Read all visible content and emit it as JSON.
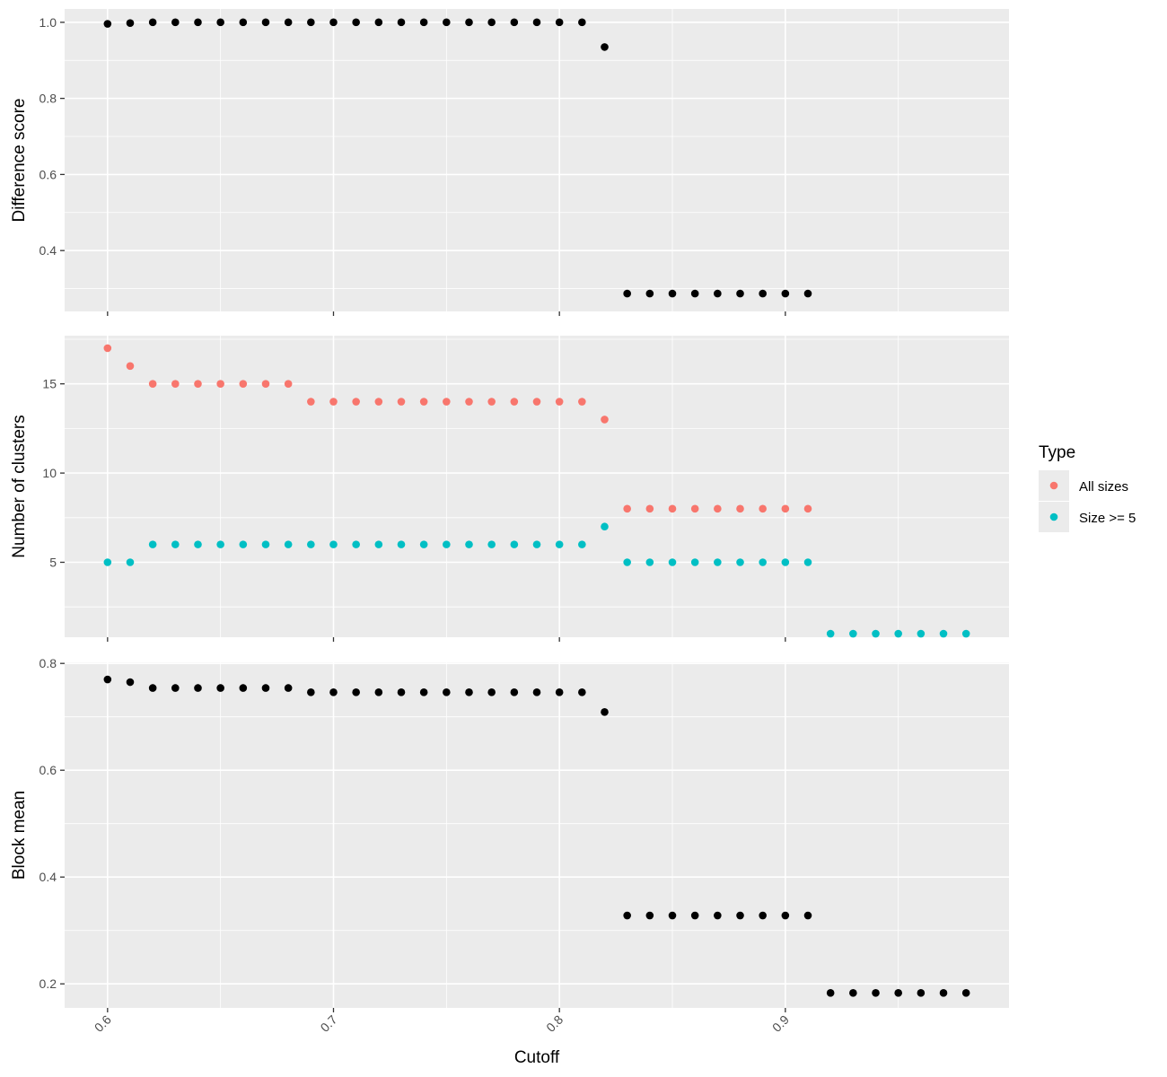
{
  "chart_data": {
    "type": "scatter",
    "xlabel": "Cutoff",
    "x_ticks": [
      0.6,
      0.7,
      0.8,
      0.9
    ],
    "xlim": [
      0.581,
      0.999
    ],
    "legend": {
      "title": "Type",
      "position": "right",
      "entries": [
        {
          "label": "All sizes",
          "color": "#F8766D"
        },
        {
          "label": "Size >= 5",
          "color": "#00BFC4"
        }
      ]
    },
    "grid": true,
    "panels": [
      {
        "ylabel": "Difference score",
        "ylim": [
          0.24,
          1.035
        ],
        "y_ticks": [
          0.4,
          0.6,
          0.8,
          1.0
        ],
        "y_tick_labels": [
          "0.4",
          "0.6",
          "0.8",
          "1.0"
        ],
        "series": [
          {
            "color": "#000000",
            "x": [
              0.6,
              0.61,
              0.62,
              0.63,
              0.64,
              0.65,
              0.66,
              0.67,
              0.68,
              0.69,
              0.7,
              0.71,
              0.72,
              0.73,
              0.74,
              0.75,
              0.76,
              0.77,
              0.78,
              0.79,
              0.8,
              0.81,
              0.82,
              0.83,
              0.84,
              0.85,
              0.86,
              0.87,
              0.88,
              0.89,
              0.9,
              0.91
            ],
            "y": [
              0.996,
              0.998,
              1.0,
              1.0,
              1.0,
              1.0,
              1.0,
              1.0,
              1.0,
              1.0,
              1.0,
              1.0,
              1.0,
              1.0,
              1.0,
              1.0,
              1.0,
              1.0,
              1.0,
              1.0,
              1.0,
              1.0,
              0.935,
              0.287,
              0.287,
              0.287,
              0.287,
              0.287,
              0.287,
              0.287,
              0.287,
              0.287
            ]
          }
        ]
      },
      {
        "ylabel": "Number of clusters",
        "ylim": [
          0.8,
          17.7
        ],
        "y_ticks": [
          5,
          10,
          15
        ],
        "y_tick_labels": [
          "5",
          "10",
          "15"
        ],
        "series": [
          {
            "name": "All sizes",
            "color": "#F8766D",
            "x": [
              0.6,
              0.61,
              0.62,
              0.63,
              0.64,
              0.65,
              0.66,
              0.67,
              0.68,
              0.69,
              0.7,
              0.71,
              0.72,
              0.73,
              0.74,
              0.75,
              0.76,
              0.77,
              0.78,
              0.79,
              0.8,
              0.81,
              0.82,
              0.83,
              0.84,
              0.85,
              0.86,
              0.87,
              0.88,
              0.89,
              0.9,
              0.91
            ],
            "y": [
              17,
              16,
              15,
              15,
              15,
              15,
              15,
              15,
              15,
              14,
              14,
              14,
              14,
              14,
              14,
              14,
              14,
              14,
              14,
              14,
              14,
              14,
              13,
              8,
              8,
              8,
              8,
              8,
              8,
              8,
              8,
              8
            ]
          },
          {
            "name": "Size >= 5",
            "color": "#00BFC4",
            "x": [
              0.6,
              0.61,
              0.62,
              0.63,
              0.64,
              0.65,
              0.66,
              0.67,
              0.68,
              0.69,
              0.7,
              0.71,
              0.72,
              0.73,
              0.74,
              0.75,
              0.76,
              0.77,
              0.78,
              0.79,
              0.8,
              0.81,
              0.82,
              0.83,
              0.84,
              0.85,
              0.86,
              0.87,
              0.88,
              0.89,
              0.9,
              0.91,
              0.92,
              0.93,
              0.94,
              0.95,
              0.96,
              0.97,
              0.98
            ],
            "y": [
              5,
              5,
              6,
              6,
              6,
              6,
              6,
              6,
              6,
              6,
              6,
              6,
              6,
              6,
              6,
              6,
              6,
              6,
              6,
              6,
              6,
              6,
              7,
              5,
              5,
              5,
              5,
              5,
              5,
              5,
              5,
              5,
              1,
              1,
              1,
              1,
              1,
              1,
              1
            ]
          }
        ]
      },
      {
        "ylabel": "Block mean",
        "ylim": [
          0.155,
          0.802
        ],
        "y_ticks": [
          0.2,
          0.4,
          0.6,
          0.8
        ],
        "y_tick_labels": [
          "0.2",
          "0.4",
          "0.6",
          "0.8"
        ],
        "series": [
          {
            "color": "#000000",
            "x": [
              0.6,
              0.61,
              0.62,
              0.63,
              0.64,
              0.65,
              0.66,
              0.67,
              0.68,
              0.69,
              0.7,
              0.71,
              0.72,
              0.73,
              0.74,
              0.75,
              0.76,
              0.77,
              0.78,
              0.79,
              0.8,
              0.81,
              0.82,
              0.83,
              0.84,
              0.85,
              0.86,
              0.87,
              0.88,
              0.89,
              0.9,
              0.91,
              0.92,
              0.93,
              0.94,
              0.95,
              0.96,
              0.97,
              0.98
            ],
            "y": [
              0.77,
              0.765,
              0.754,
              0.754,
              0.754,
              0.754,
              0.754,
              0.754,
              0.754,
              0.746,
              0.746,
              0.746,
              0.746,
              0.746,
              0.746,
              0.746,
              0.746,
              0.746,
              0.746,
              0.746,
              0.746,
              0.746,
              0.709,
              0.328,
              0.328,
              0.328,
              0.328,
              0.328,
              0.328,
              0.328,
              0.328,
              0.328,
              0.183,
              0.183,
              0.183,
              0.183,
              0.183,
              0.183,
              0.183
            ]
          }
        ]
      }
    ]
  }
}
